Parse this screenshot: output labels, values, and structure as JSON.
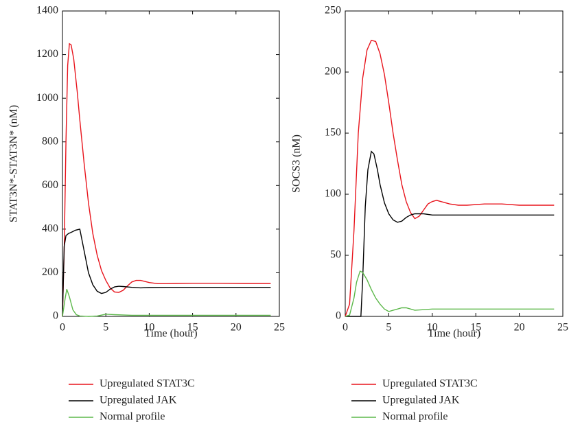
{
  "chart_data": [
    {
      "type": "line",
      "xlabel": "Time (hour)",
      "ylabel": "STAT3N*-STAT3N* (nM)",
      "xlim": [
        0,
        25
      ],
      "xticks": [
        0,
        5,
        10,
        15,
        20,
        25
      ],
      "ylim": [
        0,
        1400
      ],
      "yticks": [
        0,
        200,
        400,
        600,
        800,
        1000,
        1200,
        1400
      ],
      "legend": "bottom",
      "series": [
        {
          "name": "Upregulated STAT3C",
          "color": "#e8141c",
          "x": [
            0,
            0.2,
            0.4,
            0.6,
            0.8,
            1,
            1.3,
            1.7,
            2,
            2.5,
            3,
            3.5,
            4,
            4.5,
            5,
            5.5,
            6,
            6.5,
            7,
            7.5,
            8,
            8.5,
            9,
            9.5,
            10,
            11,
            12,
            13,
            15,
            18,
            21,
            24
          ],
          "values": [
            0,
            300,
            800,
            1150,
            1250,
            1245,
            1180,
            1030,
            900,
            700,
            520,
            380,
            280,
            210,
            165,
            130,
            112,
            110,
            120,
            140,
            158,
            165,
            165,
            160,
            155,
            150,
            150,
            151,
            152,
            152,
            151,
            151
          ]
        },
        {
          "name": "Upregulated JAK",
          "color": "#000000",
          "x": [
            0,
            0.2,
            0.4,
            0.7,
            1,
            1.5,
            2,
            2.5,
            3,
            3.5,
            4,
            4.5,
            5,
            5.5,
            6,
            6.5,
            7,
            8,
            9,
            10,
            12,
            15,
            20,
            24
          ],
          "values": [
            0,
            320,
            370,
            380,
            385,
            395,
            400,
            300,
            200,
            145,
            115,
            105,
            110,
            125,
            135,
            138,
            137,
            133,
            131,
            132,
            133,
            133,
            133,
            133
          ]
        },
        {
          "name": "Normal profile",
          "color": "#5cb84a",
          "x": [
            0,
            0.3,
            0.5,
            0.8,
            1.2,
            1.6,
            2,
            3,
            4,
            5,
            6,
            8,
            10,
            15,
            24
          ],
          "values": [
            0,
            80,
            125,
            90,
            30,
            8,
            2,
            0,
            2,
            10,
            8,
            5,
            5,
            5,
            5
          ]
        }
      ]
    },
    {
      "type": "line",
      "xlabel": "Time (hour)",
      "ylabel": "SOCS3 (nM)",
      "xlim": [
        0,
        25
      ],
      "xticks": [
        0,
        5,
        10,
        15,
        20,
        25
      ],
      "ylim": [
        0,
        250
      ],
      "yticks": [
        0,
        50,
        100,
        150,
        200,
        250
      ],
      "legend": "bottom",
      "series": [
        {
          "name": "Upregulated STAT3C",
          "color": "#e8141c",
          "x": [
            0,
            0.5,
            1,
            1.5,
            2,
            2.5,
            3,
            3.5,
            4,
            4.5,
            5,
            5.5,
            6,
            6.5,
            7,
            7.5,
            8,
            8.5,
            9,
            9.5,
            10,
            10.5,
            11,
            12,
            13,
            14,
            16,
            18,
            20,
            24
          ],
          "values": [
            0,
            10,
            70,
            150,
            195,
            218,
            226,
            225,
            215,
            198,
            175,
            150,
            128,
            108,
            94,
            85,
            80,
            82,
            87,
            92,
            94,
            95,
            94,
            92,
            91,
            91,
            92,
            92,
            91,
            91
          ]
        },
        {
          "name": "Upregulated JAK",
          "color": "#000000",
          "x": [
            0,
            1.8,
            2,
            2.3,
            2.6,
            3,
            3.3,
            3.7,
            4,
            4.5,
            5,
            5.5,
            6,
            6.5,
            7,
            7.5,
            8,
            9,
            10,
            12,
            24
          ],
          "values": [
            0,
            0,
            30,
            90,
            120,
            135,
            133,
            120,
            108,
            93,
            84,
            79,
            77,
            78,
            81,
            83,
            84,
            84,
            83,
            83,
            83
          ]
        },
        {
          "name": "Normal profile",
          "color": "#5cb84a",
          "x": [
            0,
            0.5,
            1,
            1.3,
            1.7,
            2,
            2.5,
            3,
            3.5,
            4,
            4.5,
            5,
            5.5,
            6,
            6.5,
            7,
            8,
            10,
            12,
            24
          ],
          "values": [
            0,
            1,
            15,
            28,
            37,
            36,
            30,
            22,
            15,
            10,
            6,
            4,
            5,
            6,
            7,
            7,
            5,
            6,
            6,
            6
          ]
        }
      ]
    }
  ]
}
